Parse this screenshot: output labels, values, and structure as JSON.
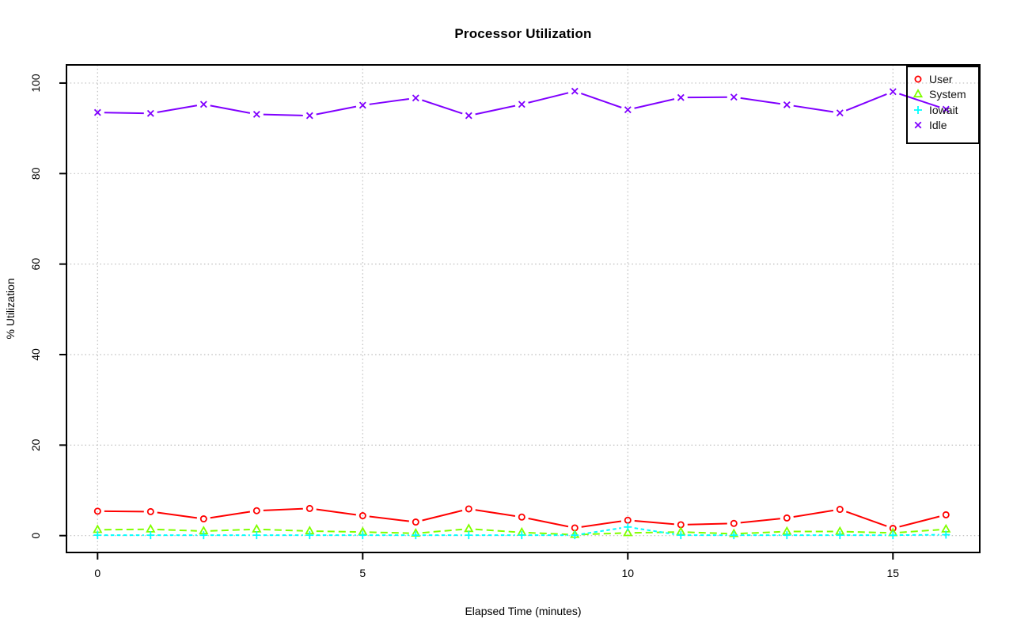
{
  "page": {
    "background": "#ffffff"
  },
  "chart_data": {
    "type": "line",
    "title": "Processor Utilization",
    "xlabel": "Elapsed Time (minutes)",
    "ylabel": "% Utilization",
    "x": [
      0,
      1,
      2,
      3,
      4,
      5,
      6,
      7,
      8,
      9,
      10,
      11,
      12,
      13,
      14,
      15,
      16
    ],
    "xlim": [
      0,
      16
    ],
    "ylim": [
      0,
      100
    ],
    "xticks": [
      0,
      5,
      10,
      15
    ],
    "yticks": [
      0,
      20,
      40,
      60,
      80,
      100
    ],
    "grid": true,
    "grid_style": "dotted",
    "grid_color": "#bdbdbd",
    "legend_position": "topright",
    "series": [
      {
        "name": "User",
        "color": "#ff0000",
        "marker": "circle",
        "linestyle": "solid",
        "values": [
          5.4,
          5.3,
          3.7,
          5.5,
          6.0,
          4.4,
          3.0,
          5.9,
          4.1,
          1.7,
          3.4,
          2.4,
          2.7,
          3.9,
          5.8,
          1.6,
          4.6
        ]
      },
      {
        "name": "System",
        "color": "#80ff00",
        "marker": "triangle",
        "linestyle": "dashed",
        "values": [
          1.3,
          1.4,
          1.0,
          1.4,
          1.0,
          0.8,
          0.5,
          1.5,
          0.7,
          0.2,
          0.6,
          0.8,
          0.4,
          0.9,
          0.9,
          0.6,
          1.4
        ]
      },
      {
        "name": "Iowait",
        "color": "#00ffff",
        "marker": "plus",
        "linestyle": "shortdash",
        "values": [
          0.1,
          0.1,
          0.1,
          0.1,
          0.1,
          0.1,
          0.1,
          0.1,
          0.1,
          0.1,
          1.9,
          0.1,
          0.1,
          0.1,
          0.1,
          0.1,
          0.2
        ]
      },
      {
        "name": "Idle",
        "color": "#8000ff",
        "marker": "x",
        "linestyle": "solid",
        "values": [
          93.5,
          93.3,
          95.3,
          93.1,
          92.8,
          95.1,
          96.7,
          92.8,
          95.3,
          98.2,
          94.1,
          96.8,
          96.9,
          95.2,
          93.4,
          98.1,
          94.2
        ]
      }
    ]
  }
}
